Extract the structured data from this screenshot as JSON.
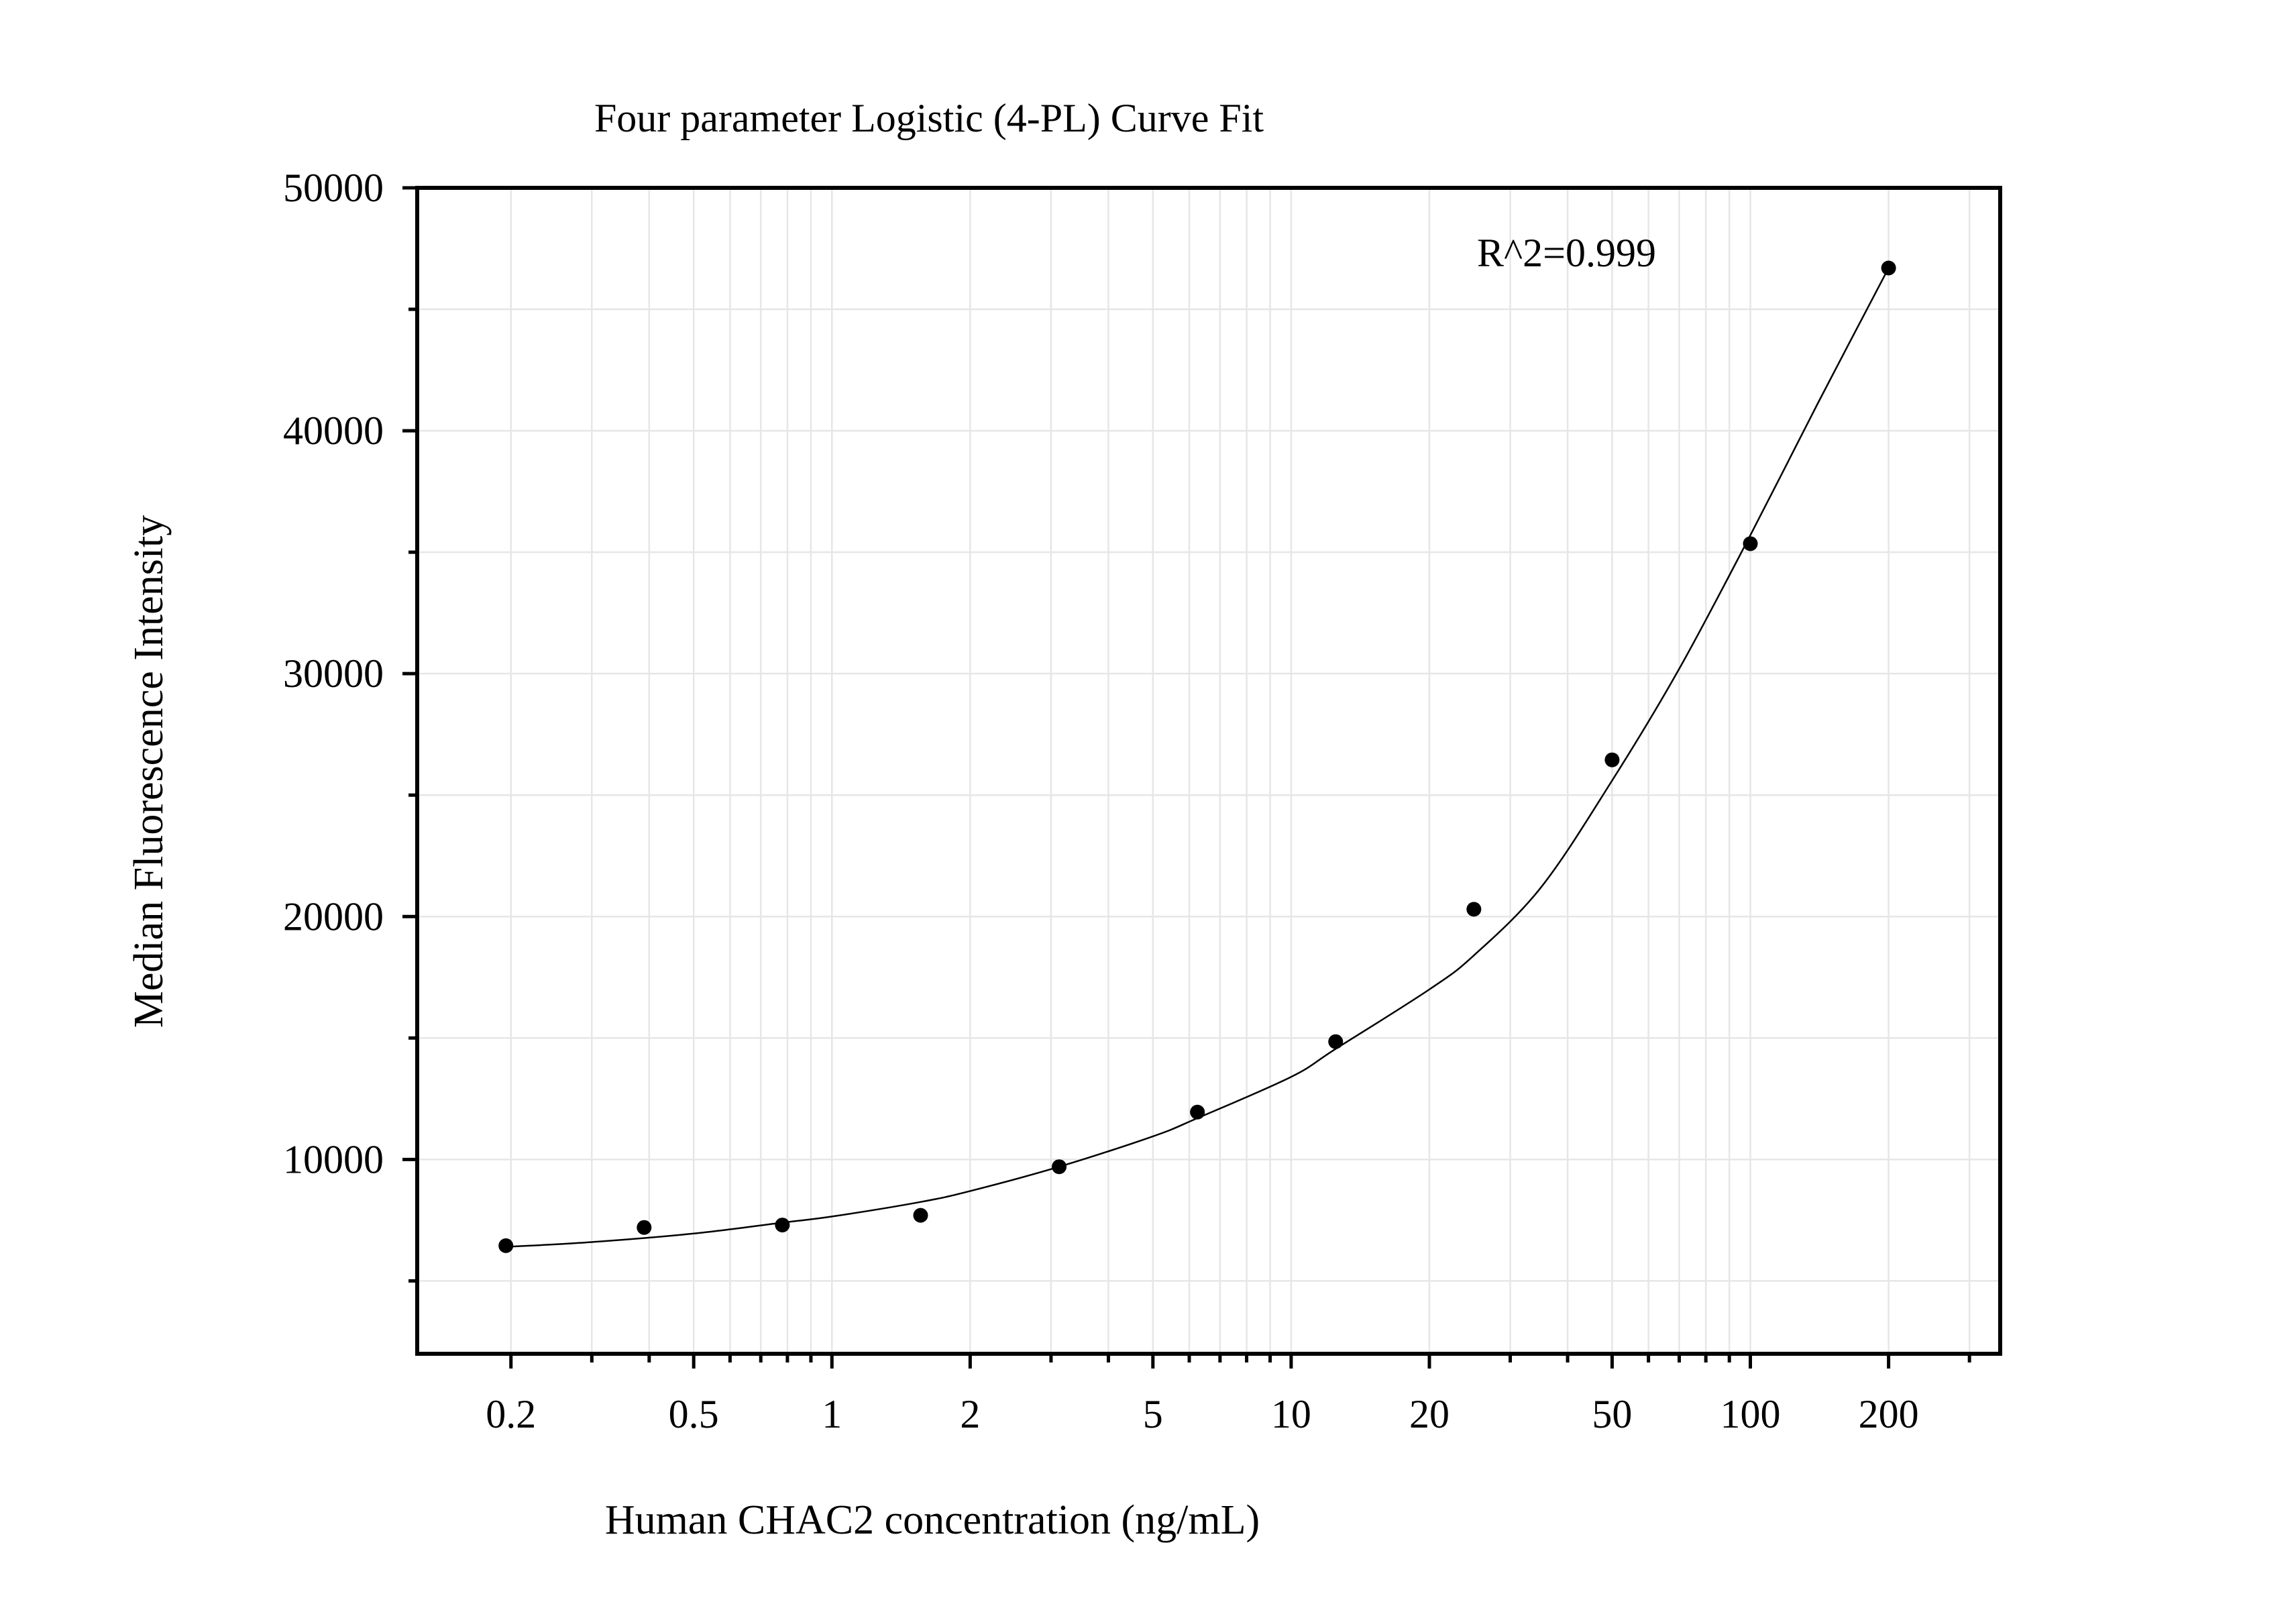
{
  "chart_data": {
    "type": "scatter",
    "title": "Four parameter Logistic (4-PL) Curve Fit",
    "xlabel": "Human CHAC2 concentration (ng/mL)",
    "ylabel": "Median Fluorescence Intensity",
    "x_scale": "log",
    "xlim": [
      0.125,
      350
    ],
    "ylim": [
      2000,
      50000
    ],
    "grid": true,
    "x_ticks": [
      0.2,
      0.5,
      1,
      2,
      5,
      10,
      20,
      50,
      100,
      200
    ],
    "x_tick_labels": [
      "0.2",
      "0.5",
      "1",
      "2",
      "5",
      "10",
      "20",
      "50",
      "100",
      "200"
    ],
    "y_ticks": [
      10000,
      20000,
      30000,
      40000,
      50000
    ],
    "y_tick_labels": [
      "10000",
      "20000",
      "30000",
      "40000",
      "50000"
    ],
    "annotation": "R^2=0.999",
    "series": [
      {
        "type": "scatter",
        "x": [
          0.195,
          0.39,
          0.78,
          1.56,
          3.125,
          6.25,
          12.5,
          25,
          50,
          100,
          200
        ],
        "y": [
          6450,
          7200,
          7300,
          7700,
          9700,
          11950,
          14850,
          20300,
          26450,
          35350,
          46700
        ]
      },
      {
        "type": "line",
        "fit": "4-PL",
        "x": [
          0.195,
          0.3,
          0.5,
          0.78,
          1,
          1.56,
          2,
          3.125,
          5,
          6.25,
          10,
          12.5,
          20,
          25,
          35,
          50,
          70,
          100,
          140,
          200
        ],
        "y": [
          6400,
          6600,
          6950,
          7400,
          7650,
          8250,
          8700,
          9700,
          10950,
          11700,
          13400,
          14550,
          17000,
          18400,
          21200,
          25600,
          30200,
          35700,
          41100,
          46700
        ]
      }
    ]
  }
}
